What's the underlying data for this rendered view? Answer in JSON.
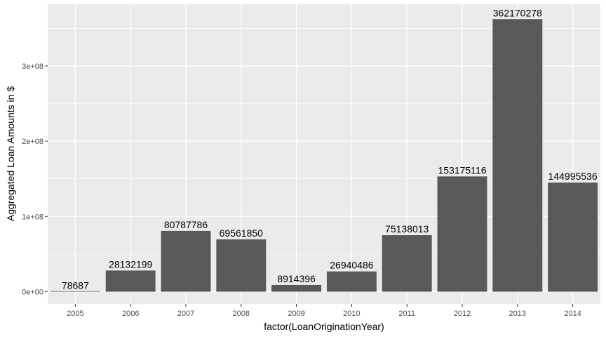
{
  "chart_data": {
    "type": "bar",
    "title": "",
    "xlabel": "factor(LoanOriginationYear)",
    "ylabel": "Aggregated Loan Amounts in $",
    "categories": [
      "2005",
      "2006",
      "2007",
      "2008",
      "2009",
      "2010",
      "2011",
      "2012",
      "2013",
      "2014"
    ],
    "values": [
      78687,
      28132199,
      80787786,
      69561850,
      8914396,
      26940486,
      75138013,
      153175116,
      362170278,
      144995536
    ],
    "value_labels": [
      "78687",
      "28132199",
      "80787786",
      "69561850",
      "8914396",
      "26940486",
      "75138013",
      "153175116",
      "362170278",
      "144995536"
    ],
    "yticks": [
      0,
      100000000,
      200000000,
      300000000
    ],
    "ytick_labels": [
      "0e+00",
      "1e+08",
      "2e+08",
      "3e+08"
    ],
    "ylim": [
      0,
      380000000
    ],
    "grid": true,
    "colors": {
      "bar": "#595959",
      "panel": "#ebebeb",
      "grid": "#ffffff"
    }
  }
}
